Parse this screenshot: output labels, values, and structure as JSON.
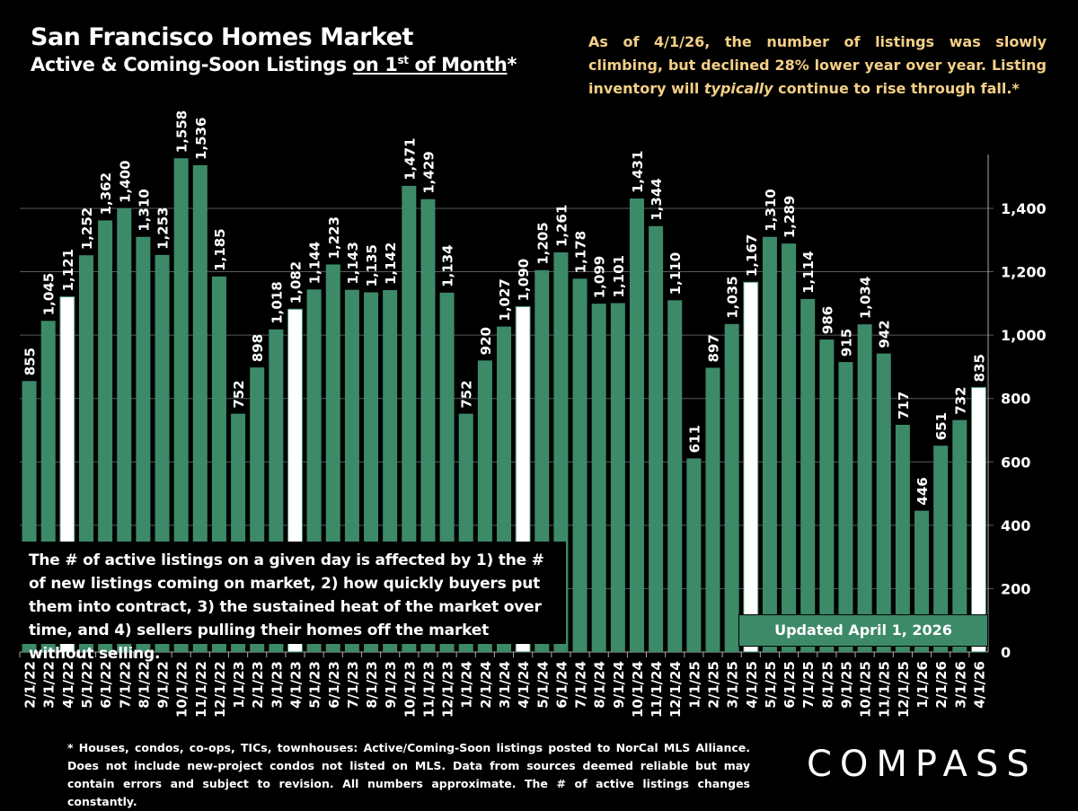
{
  "header": {
    "title": "San Francisco Homes Market",
    "subtitle_prefix": "Active & Coming-Soon Listings ",
    "subtitle_underlined_a": "on 1",
    "subtitle_sup": "st",
    "subtitle_underlined_b": " of Month",
    "subtitle_suffix": "*"
  },
  "annotation": {
    "part1": "As of 4/1/26, the number of listings was slowly climbing, but declined 28% lower year over year. Listing inventory will ",
    "emphasis": "typically",
    "part2": " continue to rise through fall.*"
  },
  "info_box": "The # of active listings on a given day is affected by 1) the # of new listings coming on market, 2) how quickly buyers put them into contract, 3) the sustained heat of the market over time, and 4) sellers pulling their homes off the market without selling.",
  "updated_label": "Updated April 1, 2026",
  "footnote": "* Houses, condos, co-ops, TICs, townhouses: Active/Coming-Soon listings posted to NorCal MLS Alliance. Does not include new-project condos not listed on MLS. Data from sources deemed reliable but may contain errors and subject to revision. All numbers approximate. The # of active listings changes constantly.",
  "logo": "COMPASS",
  "colors": {
    "bar": "#3d8a68",
    "highlight_bar": "#ffffff",
    "annotation": "#f3cf86",
    "background": "#000000"
  },
  "chart_data": {
    "type": "bar",
    "title": "San Francisco Homes Market",
    "categories": [
      "2/1/22",
      "3/1/22",
      "4/1/22",
      "5/1/22",
      "6/1/22",
      "7/1/22",
      "8/1/22",
      "9/1/22",
      "10/1/22",
      "11/1/22",
      "12/1/22",
      "1/1/23",
      "2/1/23",
      "3/1/23",
      "4/1/23",
      "5/1/23",
      "6/1/23",
      "7/1/23",
      "8/1/23",
      "9/1/23",
      "10/1/23",
      "11/1/23",
      "12/1/23",
      "1/1/24",
      "2/1/24",
      "3/1/24",
      "4/1/24",
      "5/1/24",
      "6/1/24",
      "7/1/24",
      "8/1/24",
      "9/1/24",
      "10/1/24",
      "11/1/24",
      "12/1/24",
      "1/1/25",
      "2/1/25",
      "3/1/25",
      "4/1/25",
      "5/1/25",
      "6/1/25",
      "7/1/25",
      "8/1/25",
      "9/1/25",
      "10/1/25",
      "11/1/25",
      "12/1/25",
      "1/1/26",
      "2/1/26",
      "3/1/26",
      "4/1/26"
    ],
    "values": [
      855,
      1045,
      1121,
      1252,
      1362,
      1400,
      1310,
      1253,
      1558,
      1536,
      1185,
      752,
      898,
      1018,
      1082,
      1144,
      1223,
      1143,
      1135,
      1142,
      1471,
      1429,
      1134,
      752,
      920,
      1027,
      1090,
      1205,
      1261,
      1178,
      1099,
      1101,
      1431,
      1344,
      1110,
      611,
      897,
      1035,
      1167,
      1310,
      1289,
      1114,
      986,
      915,
      1034,
      942,
      717,
      446,
      651,
      732,
      835
    ],
    "highlighted": [
      "4/1/22",
      "4/1/23",
      "4/1/24",
      "4/1/25",
      "4/1/26"
    ],
    "y_ticks": [
      "0",
      "200",
      "400",
      "600",
      "800",
      "1,000",
      "1,200",
      "1,400"
    ],
    "y_tick_values": [
      0,
      200,
      400,
      600,
      800,
      1000,
      1200,
      1400
    ],
    "ylim": [
      0,
      1570
    ],
    "y_axis_side": "right",
    "grid": true,
    "data_labels": true
  }
}
